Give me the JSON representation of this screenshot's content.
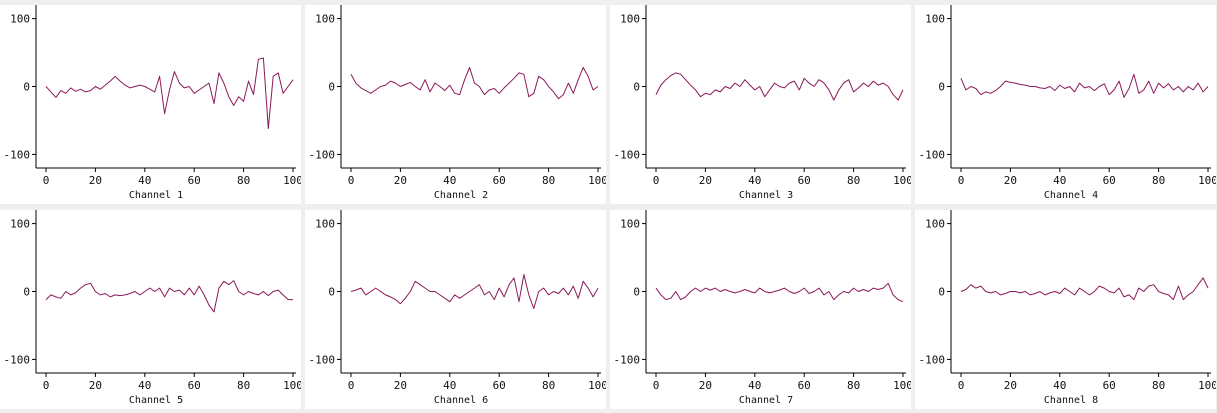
{
  "chart_data": [
    {
      "type": "line",
      "title": "Channel 1",
      "xlim": [
        0,
        100
      ],
      "ylim": [
        -120,
        120
      ],
      "xticks": [
        0,
        20,
        40,
        60,
        80,
        100
      ],
      "yticks": [
        -100,
        0,
        100
      ],
      "color": "#8b1a5a",
      "x": [
        0,
        2,
        4,
        6,
        8,
        10,
        12,
        14,
        16,
        18,
        20,
        22,
        24,
        26,
        28,
        30,
        32,
        34,
        36,
        38,
        40,
        42,
        44,
        46,
        48,
        50,
        52,
        54,
        56,
        58,
        60,
        62,
        64,
        66,
        68,
        70,
        72,
        74,
        76,
        78,
        80,
        82,
        84,
        86,
        88,
        90,
        92,
        94,
        96,
        98,
        100
      ],
      "y": [
        0,
        -8,
        -16,
        -6,
        -10,
        -2,
        -7,
        -4,
        -8,
        -6,
        0,
        -4,
        2,
        8,
        15,
        8,
        2,
        -2,
        0,
        2,
        0,
        -4,
        -8,
        15,
        -40,
        -5,
        22,
        5,
        -2,
        0,
        -10,
        -5,
        0,
        5,
        -25,
        20,
        5,
        -15,
        -28,
        -15,
        -22,
        8,
        -12,
        40,
        42,
        -62,
        15,
        20,
        -10,
        0,
        10
      ]
    },
    {
      "type": "line",
      "title": "Channel 2",
      "xlim": [
        0,
        100
      ],
      "ylim": [
        -120,
        120
      ],
      "xticks": [
        0,
        20,
        40,
        60,
        80,
        100
      ],
      "yticks": [
        -100,
        0,
        100
      ],
      "color": "#8b1a5a",
      "x": [
        0,
        2,
        4,
        6,
        8,
        10,
        12,
        14,
        16,
        18,
        20,
        22,
        24,
        26,
        28,
        30,
        32,
        34,
        36,
        38,
        40,
        42,
        44,
        46,
        48,
        50,
        52,
        54,
        56,
        58,
        60,
        62,
        64,
        66,
        68,
        70,
        72,
        74,
        76,
        78,
        80,
        82,
        84,
        86,
        88,
        90,
        92,
        94,
        96,
        98,
        100
      ],
      "y": [
        18,
        5,
        -2,
        -6,
        -10,
        -5,
        0,
        2,
        8,
        5,
        0,
        3,
        6,
        0,
        -5,
        10,
        -8,
        5,
        0,
        -6,
        2,
        -10,
        -12,
        10,
        28,
        5,
        0,
        -12,
        -5,
        -3,
        -10,
        -2,
        5,
        12,
        20,
        18,
        -15,
        -10,
        15,
        10,
        0,
        -8,
        -18,
        -12,
        5,
        -10,
        10,
        28,
        15,
        -5,
        0
      ]
    },
    {
      "type": "line",
      "title": "Channel 3",
      "xlim": [
        0,
        100
      ],
      "ylim": [
        -120,
        120
      ],
      "xticks": [
        0,
        20,
        40,
        60,
        80,
        100
      ],
      "yticks": [
        -100,
        0,
        100
      ],
      "color": "#8b1a5a",
      "x": [
        0,
        2,
        4,
        6,
        8,
        10,
        12,
        14,
        16,
        18,
        20,
        22,
        24,
        26,
        28,
        30,
        32,
        34,
        36,
        38,
        40,
        42,
        44,
        46,
        48,
        50,
        52,
        54,
        56,
        58,
        60,
        62,
        64,
        66,
        68,
        70,
        72,
        74,
        76,
        78,
        80,
        82,
        84,
        86,
        88,
        90,
        92,
        94,
        96,
        98,
        100
      ],
      "y": [
        -12,
        2,
        10,
        16,
        20,
        18,
        10,
        2,
        -5,
        -15,
        -10,
        -12,
        -5,
        -8,
        0,
        -3,
        5,
        0,
        10,
        2,
        -5,
        0,
        -15,
        -5,
        5,
        0,
        -2,
        5,
        8,
        -5,
        12,
        5,
        0,
        10,
        5,
        -5,
        -20,
        -5,
        5,
        10,
        -8,
        -2,
        5,
        0,
        8,
        2,
        5,
        0,
        -12,
        -20,
        -5
      ]
    },
    {
      "type": "line",
      "title": "Channel 4",
      "xlim": [
        0,
        100
      ],
      "ylim": [
        -120,
        120
      ],
      "xticks": [
        0,
        20,
        40,
        60,
        80,
        100
      ],
      "yticks": [
        -100,
        0,
        100
      ],
      "color": "#8b1a5a",
      "x": [
        0,
        2,
        4,
        6,
        8,
        10,
        12,
        14,
        16,
        18,
        20,
        22,
        24,
        26,
        28,
        30,
        32,
        34,
        36,
        38,
        40,
        42,
        44,
        46,
        48,
        50,
        52,
        54,
        56,
        58,
        60,
        62,
        64,
        66,
        68,
        70,
        72,
        74,
        76,
        78,
        80,
        82,
        84,
        86,
        88,
        90,
        92,
        94,
        96,
        98,
        100
      ],
      "y": [
        12,
        -5,
        0,
        -3,
        -12,
        -8,
        -10,
        -6,
        0,
        8,
        6,
        5,
        3,
        2,
        0,
        0,
        -2,
        -3,
        0,
        -6,
        2,
        -3,
        0,
        -8,
        5,
        -2,
        0,
        -6,
        0,
        4,
        -12,
        -5,
        8,
        -16,
        -3,
        18,
        -10,
        -5,
        8,
        -10,
        5,
        -2,
        4,
        -5,
        0,
        -8,
        0,
        -5,
        5,
        -8,
        0
      ]
    },
    {
      "type": "line",
      "title": "Channel 5",
      "xlim": [
        0,
        100
      ],
      "ylim": [
        -120,
        120
      ],
      "xticks": [
        0,
        20,
        40,
        60,
        80,
        100
      ],
      "yticks": [
        -100,
        0,
        100
      ],
      "color": "#8b1a5a",
      "x": [
        0,
        2,
        4,
        6,
        8,
        10,
        12,
        14,
        16,
        18,
        20,
        22,
        24,
        26,
        28,
        30,
        32,
        34,
        36,
        38,
        40,
        42,
        44,
        46,
        48,
        50,
        52,
        54,
        56,
        58,
        60,
        62,
        64,
        66,
        68,
        70,
        72,
        74,
        76,
        78,
        80,
        82,
        84,
        86,
        88,
        90,
        92,
        94,
        96,
        98,
        100
      ],
      "y": [
        -12,
        -5,
        -8,
        -10,
        0,
        -5,
        -2,
        5,
        10,
        12,
        0,
        -5,
        -3,
        -8,
        -5,
        -6,
        -5,
        -3,
        0,
        -5,
        0,
        5,
        0,
        5,
        -8,
        5,
        0,
        2,
        -5,
        5,
        -5,
        8,
        -5,
        -20,
        -30,
        5,
        15,
        10,
        16,
        0,
        -5,
        0,
        -3,
        -5,
        0,
        -6,
        0,
        2,
        -5,
        -12,
        -12
      ]
    },
    {
      "type": "line",
      "title": "Channel 6",
      "xlim": [
        0,
        100
      ],
      "ylim": [
        -120,
        120
      ],
      "xticks": [
        0,
        20,
        40,
        60,
        80,
        100
      ],
      "yticks": [
        -100,
        0,
        100
      ],
      "color": "#8b1a5a",
      "x": [
        0,
        2,
        4,
        6,
        8,
        10,
        12,
        14,
        16,
        18,
        20,
        22,
        24,
        26,
        28,
        30,
        32,
        34,
        36,
        38,
        40,
        42,
        44,
        46,
        48,
        50,
        52,
        54,
        56,
        58,
        60,
        62,
        64,
        66,
        68,
        70,
        72,
        74,
        76,
        78,
        80,
        82,
        84,
        86,
        88,
        90,
        92,
        94,
        96,
        98,
        100
      ],
      "y": [
        0,
        2,
        5,
        -5,
        0,
        5,
        0,
        -5,
        -8,
        -12,
        -18,
        -10,
        0,
        15,
        10,
        5,
        0,
        0,
        -5,
        -10,
        -15,
        -5,
        -10,
        -5,
        0,
        5,
        10,
        -5,
        0,
        -12,
        5,
        -8,
        10,
        20,
        -15,
        25,
        -5,
        -25,
        0,
        5,
        -5,
        0,
        -3,
        5,
        -5,
        8,
        -10,
        15,
        5,
        -8,
        5
      ]
    },
    {
      "type": "line",
      "title": "Channel 7",
      "xlim": [
        0,
        100
      ],
      "ylim": [
        -120,
        120
      ],
      "xticks": [
        0,
        20,
        40,
        60,
        80,
        100
      ],
      "yticks": [
        -100,
        0,
        100
      ],
      "color": "#8b1a5a",
      "x": [
        0,
        2,
        4,
        6,
        8,
        10,
        12,
        14,
        16,
        18,
        20,
        22,
        24,
        26,
        28,
        30,
        32,
        34,
        36,
        38,
        40,
        42,
        44,
        46,
        48,
        50,
        52,
        54,
        56,
        58,
        60,
        62,
        64,
        66,
        68,
        70,
        72,
        74,
        76,
        78,
        80,
        82,
        84,
        86,
        88,
        90,
        92,
        94,
        96,
        98,
        100
      ],
      "y": [
        5,
        -5,
        -12,
        -10,
        0,
        -12,
        -8,
        0,
        5,
        0,
        5,
        2,
        5,
        0,
        3,
        0,
        -2,
        0,
        3,
        0,
        -2,
        5,
        0,
        -2,
        0,
        2,
        5,
        0,
        -3,
        0,
        5,
        -3,
        0,
        5,
        -5,
        0,
        -12,
        -5,
        0,
        -2,
        5,
        0,
        3,
        0,
        5,
        3,
        5,
        12,
        -5,
        -12,
        -15
      ]
    },
    {
      "type": "line",
      "title": "Channel 8",
      "xlim": [
        0,
        100
      ],
      "ylim": [
        -120,
        120
      ],
      "xticks": [
        0,
        20,
        40,
        60,
        80,
        100
      ],
      "yticks": [
        -100,
        0,
        100
      ],
      "color": "#8b1a5a",
      "x": [
        0,
        2,
        4,
        6,
        8,
        10,
        12,
        14,
        16,
        18,
        20,
        22,
        24,
        26,
        28,
        30,
        32,
        34,
        36,
        38,
        40,
        42,
        44,
        46,
        48,
        50,
        52,
        54,
        56,
        58,
        60,
        62,
        64,
        66,
        68,
        70,
        72,
        74,
        76,
        78,
        80,
        82,
        84,
        86,
        88,
        90,
        92,
        94,
        96,
        98,
        100
      ],
      "y": [
        0,
        3,
        10,
        5,
        8,
        0,
        -2,
        0,
        -5,
        -3,
        0,
        0,
        -2,
        0,
        -5,
        -3,
        0,
        -5,
        -2,
        0,
        -3,
        5,
        0,
        -5,
        5,
        0,
        -5,
        0,
        8,
        5,
        0,
        -2,
        5,
        -8,
        -5,
        -12,
        5,
        0,
        8,
        10,
        0,
        -3,
        -5,
        -12,
        8,
        -12,
        -5,
        0,
        10,
        20,
        5
      ]
    }
  ]
}
